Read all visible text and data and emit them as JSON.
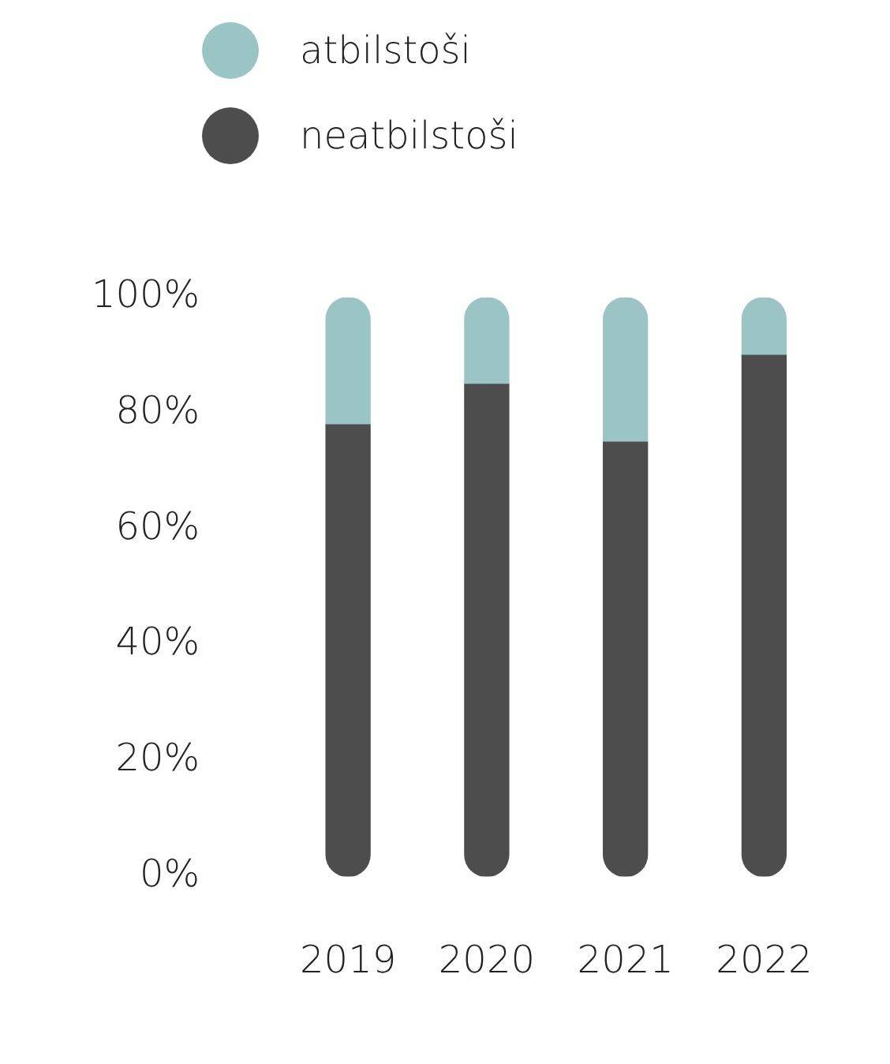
{
  "chart_data": {
    "type": "bar",
    "stacked": true,
    "categories": [
      "2019",
      "2020",
      "2021",
      "2022"
    ],
    "series": [
      {
        "name": "neatbilstoši",
        "color": "#4d4d4d",
        "values": [
          78,
          85,
          75,
          90
        ]
      },
      {
        "name": "atbilstoši",
        "color": "#9bc5c4",
        "values": [
          22,
          15,
          25,
          10
        ]
      }
    ],
    "ylim": [
      0,
      100
    ],
    "yticks": [
      {
        "value": 0,
        "label": "0%"
      },
      {
        "value": 20,
        "label": "20%"
      },
      {
        "value": 40,
        "label": "40%"
      },
      {
        "value": 60,
        "label": "60%"
      },
      {
        "value": 80,
        "label": "80%"
      },
      {
        "value": 100,
        "label": "100%"
      }
    ],
    "grid": false,
    "legend": "top"
  }
}
